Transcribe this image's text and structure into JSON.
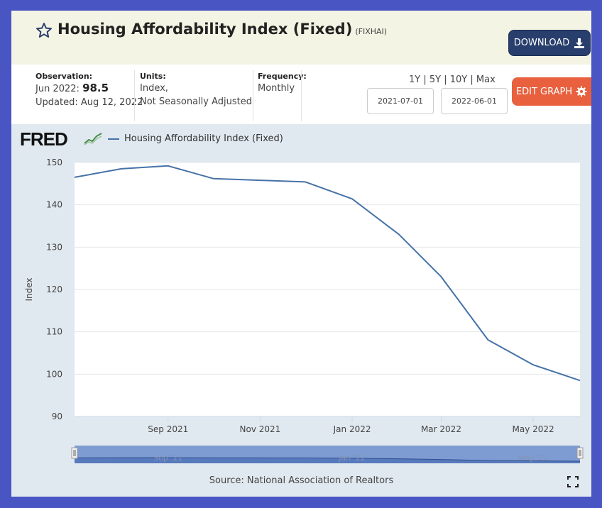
{
  "header": {
    "title": "Housing Affordability Index (Fixed)",
    "ticker": "(FIXHAI)",
    "download_label": "DOWNLOAD"
  },
  "meta": {
    "observation_label": "Observation:",
    "observation_date": "Jun 2022:",
    "observation_value": "98.5",
    "updated": "Updated: Aug 12, 2022",
    "units_label": "Units:",
    "units_line1": "Index,",
    "units_line2": "Not Seasonally Adjusted",
    "frequency_label": "Frequency:",
    "frequency_value": "Monthly"
  },
  "controls": {
    "range_1y": "1Y",
    "range_5y": "5Y",
    "range_10y": "10Y",
    "range_max": "Max",
    "start_date": "2021-07-01",
    "end_date": "2022-06-01",
    "edit_label": "EDIT GRAPH"
  },
  "brand": {
    "logo_text": "FRED"
  },
  "colors": {
    "series": "#4572a7",
    "download_bg": "#283e6c",
    "edit_bg": "#e8603e"
  },
  "chart_data": {
    "type": "line",
    "title": "",
    "xlabel": "",
    "ylabel": "Index",
    "ylim": [
      90,
      150
    ],
    "yticks": [
      90,
      100,
      110,
      120,
      130,
      140,
      150
    ],
    "xlim": [
      "2021-07-01",
      "2022-06-01"
    ],
    "x_tick_labels": [
      {
        "date": "2021-09-01",
        "label": "Sep 2021"
      },
      {
        "date": "2021-11-01",
        "label": "Nov 2021"
      },
      {
        "date": "2022-01-01",
        "label": "Jan 2022"
      },
      {
        "date": "2022-03-01",
        "label": "Mar 2022"
      },
      {
        "date": "2022-05-01",
        "label": "May 2022"
      }
    ],
    "navigator_labels": [
      {
        "date": "2021-09-01",
        "label": "Sep '21"
      },
      {
        "date": "2022-01-01",
        "label": "Jan '22"
      },
      {
        "date": "2022-05-01",
        "label": "May '22"
      }
    ],
    "series": [
      {
        "name": "Housing Affordability Index (Fixed)",
        "x": [
          "2021-07-01",
          "2021-08-01",
          "2021-09-01",
          "2021-10-01",
          "2021-11-01",
          "2021-12-01",
          "2022-01-01",
          "2022-02-01",
          "2022-03-01",
          "2022-04-01",
          "2022-05-01",
          "2022-06-01"
        ],
        "values": [
          146.5,
          148.5,
          149.2,
          146.2,
          145.8,
          145.4,
          141.4,
          133.0,
          123.0,
          108.1,
          102.2,
          98.5
        ]
      }
    ],
    "grid": true,
    "legend_position": "top-left",
    "source": "Source: National Association of Realtors"
  }
}
